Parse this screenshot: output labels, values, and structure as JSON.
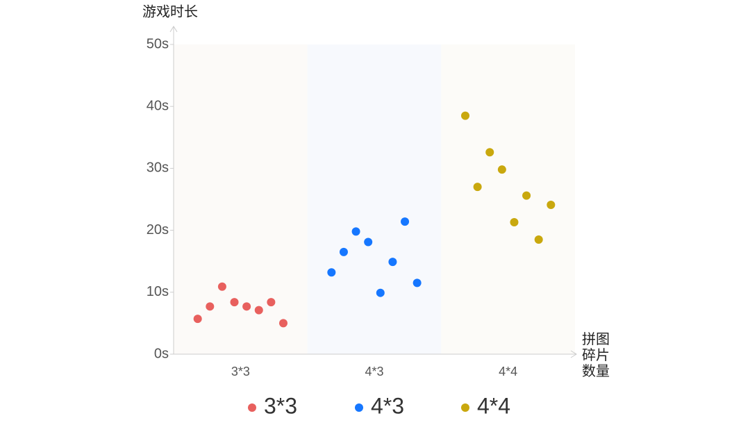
{
  "chart_data": {
    "type": "scatter",
    "y_label": "游戏时长",
    "x_label": "拼图碎片数量",
    "categories": [
      "3*3",
      "4*3",
      "4*4"
    ],
    "series": [
      {
        "name": "3*3",
        "color": "#e8605e",
        "values": [
          5.7,
          7.7,
          10.9,
          8.4,
          7.7,
          7.1,
          8.4,
          5.0
        ]
      },
      {
        "name": "4*3",
        "color": "#1677ff",
        "values": [
          13.2,
          16.5,
          19.8,
          18.1,
          9.9,
          14.9,
          21.4,
          11.5
        ]
      },
      {
        "name": "4*4",
        "color": "#c9a80e",
        "values": [
          38.5,
          27.0,
          32.6,
          29.8,
          21.3,
          25.6,
          18.5,
          24.1
        ]
      }
    ],
    "ylim": [
      0,
      50
    ],
    "yticks": [
      {
        "value": 0,
        "label": "0s"
      },
      {
        "value": 10,
        "label": "10s"
      },
      {
        "value": 20,
        "label": "20s"
      },
      {
        "value": 30,
        "label": "30s"
      },
      {
        "value": 40,
        "label": "40s"
      },
      {
        "value": 50,
        "label": "50s"
      }
    ],
    "legend": "bottom"
  }
}
